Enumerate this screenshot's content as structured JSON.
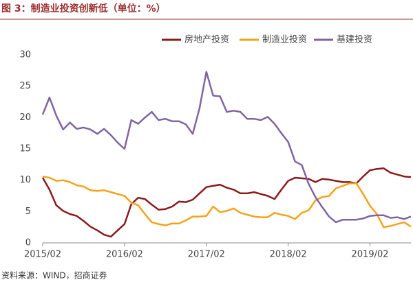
{
  "chart_data": {
    "type": "line",
    "title": "图 3：制造业投资创新低（单位：%）",
    "source": "资料来源：WIND，招商证券",
    "categories": [
      "2015/02",
      null,
      null,
      null,
      null,
      null,
      null,
      null,
      null,
      null,
      null,
      null,
      "2016/02",
      null,
      null,
      null,
      null,
      null,
      null,
      null,
      null,
      null,
      null,
      null,
      "2017/02",
      null,
      null,
      null,
      null,
      null,
      null,
      null,
      null,
      null,
      null,
      null,
      "2018/02",
      null,
      null,
      null,
      null,
      null,
      null,
      null,
      null,
      null,
      null,
      null,
      "2019/02",
      null,
      null,
      null,
      null,
      null,
      null
    ],
    "series": [
      {
        "name": "房地产投资",
        "color": "#8b1a1a",
        "values": [
          10.4,
          8.5,
          6.0,
          5.1,
          4.6,
          4.3,
          3.5,
          2.6,
          2.0,
          1.3,
          1.0,
          2.0,
          3.0,
          6.2,
          7.2,
          7.0,
          6.1,
          5.3,
          5.4,
          5.8,
          6.6,
          6.5,
          6.9,
          7.9,
          8.9,
          9.1,
          9.3,
          8.8,
          8.5,
          7.9,
          7.9,
          8.1,
          7.8,
          7.5,
          7.0,
          8.5,
          9.9,
          10.4,
          10.3,
          10.2,
          9.7,
          10.2,
          10.1,
          9.9,
          9.7,
          9.7,
          9.5,
          10.6,
          11.6,
          11.8,
          11.9,
          11.2,
          10.9,
          10.6,
          10.5
        ]
      },
      {
        "name": "制造业投资",
        "color": "#f5a21b",
        "values": [
          10.6,
          10.4,
          9.9,
          10.0,
          9.7,
          9.2,
          9.0,
          8.4,
          8.3,
          8.4,
          8.1,
          7.8,
          7.5,
          6.4,
          6.0,
          4.6,
          3.3,
          3.0,
          2.8,
          3.1,
          3.1,
          3.6,
          4.2,
          4.2,
          4.3,
          5.8,
          4.9,
          5.1,
          5.5,
          4.8,
          4.5,
          4.2,
          4.1,
          4.1,
          4.8,
          4.5,
          4.3,
          3.8,
          4.8,
          5.2,
          6.8,
          7.3,
          7.5,
          8.7,
          9.1,
          9.5,
          9.5,
          7.8,
          5.9,
          4.6,
          2.5,
          2.7,
          3.0,
          3.3,
          2.6
        ]
      },
      {
        "name": "基建投资",
        "color": "#8064a2",
        "values": [
          20.5,
          23.2,
          20.3,
          18.1,
          19.2,
          18.2,
          18.4,
          18.1,
          17.4,
          18.2,
          17.2,
          16.0,
          15.0,
          19.6,
          19.0,
          20.0,
          20.9,
          19.6,
          19.8,
          19.4,
          19.4,
          18.9,
          17.4,
          21.5,
          27.3,
          23.5,
          23.4,
          20.9,
          21.1,
          20.9,
          19.8,
          19.8,
          19.6,
          20.1,
          19.0,
          17.5,
          16.1,
          13.0,
          12.4,
          9.4,
          7.3,
          5.7,
          4.2,
          3.3,
          3.7,
          3.7,
          3.7,
          3.9,
          4.3,
          4.4,
          4.4,
          4.0,
          4.1,
          3.8,
          4.2
        ]
      }
    ],
    "ylim": [
      0,
      30
    ],
    "yticks": [
      0,
      5,
      10,
      15,
      20,
      25,
      30
    ],
    "grid": false,
    "legend": "top-right"
  }
}
